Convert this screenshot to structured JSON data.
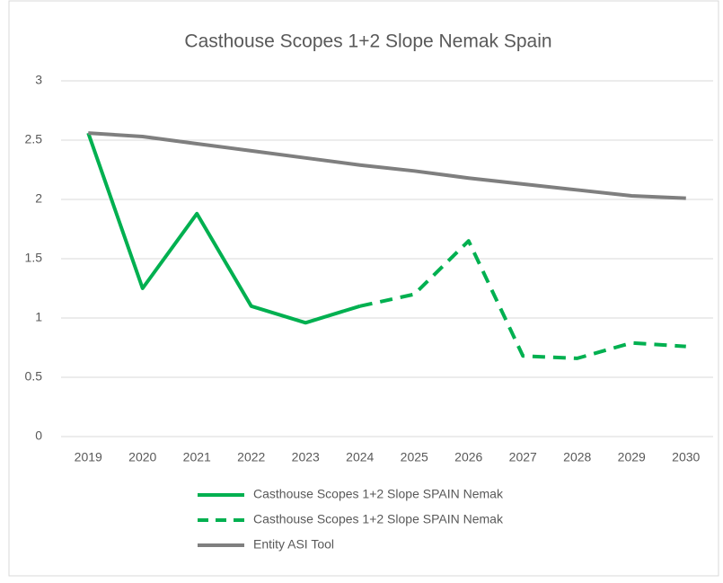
{
  "chart_data": {
    "type": "line",
    "title": "Casthouse Scopes 1+2 Slope Nemak Spain",
    "categories": [
      "2019",
      "2020",
      "2021",
      "2022",
      "2023",
      "2024",
      "2025",
      "2026",
      "2027",
      "2028",
      "2029",
      "2030"
    ],
    "series": [
      {
        "name": "Casthouse Scopes 1+2 Slope SPAIN Nemak",
        "color": "#00b050",
        "dashed": false,
        "values": [
          2.56,
          1.25,
          1.88,
          1.1,
          0.96,
          1.1,
          null,
          null,
          null,
          null,
          null,
          null
        ]
      },
      {
        "name": "Casthouse Scopes 1+2 Slope SPAIN Nemak",
        "color": "#00b050",
        "dashed": true,
        "values": [
          null,
          null,
          null,
          null,
          null,
          1.1,
          1.2,
          1.65,
          0.68,
          0.66,
          0.79,
          0.76
        ]
      },
      {
        "name": "Entity ASI Tool",
        "color": "#7f7f7f",
        "dashed": false,
        "values": [
          2.56,
          2.53,
          2.47,
          2.41,
          2.35,
          2.29,
          2.24,
          2.18,
          2.13,
          2.08,
          2.03,
          2.01
        ]
      }
    ],
    "ylim": [
      0,
      3
    ],
    "yticks": [
      0,
      0.5,
      1,
      1.5,
      2,
      2.5,
      3
    ],
    "grid": true,
    "legend": "bottom"
  }
}
